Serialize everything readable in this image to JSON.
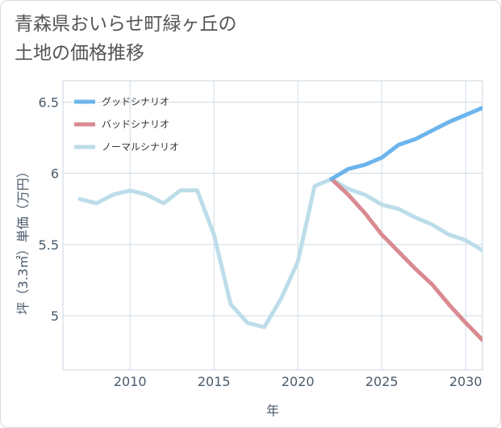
{
  "page": {
    "title_line1": "青森県おいらせ町緑ヶ丘の",
    "title_line2": "土地の価格推移"
  },
  "chart_data": {
    "type": "line",
    "xlabel": "年",
    "ylabel": "坪（3.3㎡）単価（万円）",
    "xlim": [
      2006,
      2031
    ],
    "ylim": [
      4.62,
      6.65
    ],
    "xticks": [
      2010,
      2015,
      2020,
      2025,
      2030
    ],
    "yticks": [
      5,
      5.5,
      6,
      6.5
    ],
    "ytick_labels": [
      "5",
      "5.5",
      "6",
      "6.5"
    ],
    "grid": true,
    "legend_position": "top-left",
    "series": [
      {
        "name": "グッドシナリオ",
        "color": "#6cb4ec",
        "x": [
          2022,
          2023,
          2024,
          2025,
          2026,
          2027,
          2028,
          2029,
          2030,
          2031
        ],
        "y": [
          5.96,
          6.03,
          6.06,
          6.11,
          6.2,
          6.24,
          6.3,
          6.36,
          6.41,
          6.46
        ]
      },
      {
        "name": "バッドシナリオ",
        "color": "#d98a90",
        "x": [
          2022,
          2023,
          2024,
          2025,
          2026,
          2027,
          2028,
          2029,
          2030,
          2031
        ],
        "y": [
          5.96,
          5.85,
          5.72,
          5.57,
          5.45,
          5.33,
          5.22,
          5.08,
          4.95,
          4.83
        ]
      },
      {
        "name": "ノーマルシナリオ",
        "color": "#bcdde9",
        "x": [
          2007,
          2008,
          2009,
          2010,
          2011,
          2012,
          2013,
          2014,
          2015,
          2016,
          2017,
          2018,
          2019,
          2020,
          2021,
          2022,
          2023,
          2024,
          2025,
          2026,
          2027,
          2028,
          2029,
          2030,
          2031
        ],
        "y": [
          5.82,
          5.79,
          5.85,
          5.88,
          5.85,
          5.79,
          5.88,
          5.88,
          5.57,
          5.08,
          4.95,
          4.92,
          5.12,
          5.38,
          5.91,
          5.96,
          5.89,
          5.85,
          5.78,
          5.75,
          5.69,
          5.64,
          5.57,
          5.53,
          5.46
        ]
      }
    ]
  }
}
